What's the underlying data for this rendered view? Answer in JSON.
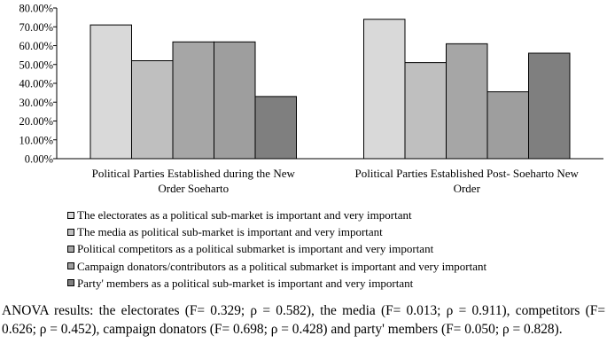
{
  "chart_data": {
    "type": "bar",
    "categories": [
      [
        "Political Parties Established during the New",
        "Order Soeharto"
      ],
      [
        "Political Parties Established Post- Soeharto New",
        "Order"
      ]
    ],
    "series": [
      {
        "name": "The electorates as a political sub-market is important and very important",
        "color": "#d9d9d9",
        "values": [
          71,
          74
        ]
      },
      {
        "name": "The media as political sub-market is important and very important",
        "color": "#bfbfbf",
        "values": [
          52,
          51
        ]
      },
      {
        "name": "Political competitors as a political submarket is important and very important",
        "color": "#a6a6a6",
        "values": [
          62,
          61
        ]
      },
      {
        "name": "Campaign donators/contributors as a political submarket is important and very important",
        "color": "#9e9e9e",
        "values": [
          62,
          35.5
        ]
      },
      {
        "name": "Party' members as a political sub-market is important and very important",
        "color": "#7f7f7f",
        "values": [
          33,
          56
        ]
      }
    ],
    "yticks": [
      "0.00%",
      "10.00%",
      "20.00%",
      "30.00%",
      "40.00%",
      "50.00%",
      "60.00%",
      "70.00%",
      "80.00%"
    ],
    "ylim": [
      0,
      80
    ],
    "grid": false,
    "legend_position": "bottom"
  },
  "anova_text": "ANOVA results: the electorates (F= 0.329; ρ = 0.582), the media (F= 0.013; ρ = 0.911), competitors (F= 0.626; ρ = 0.452), campaign donators (F= 0.698; ρ = 0.428) and party' members (F= 0.050; ρ = 0.828)."
}
